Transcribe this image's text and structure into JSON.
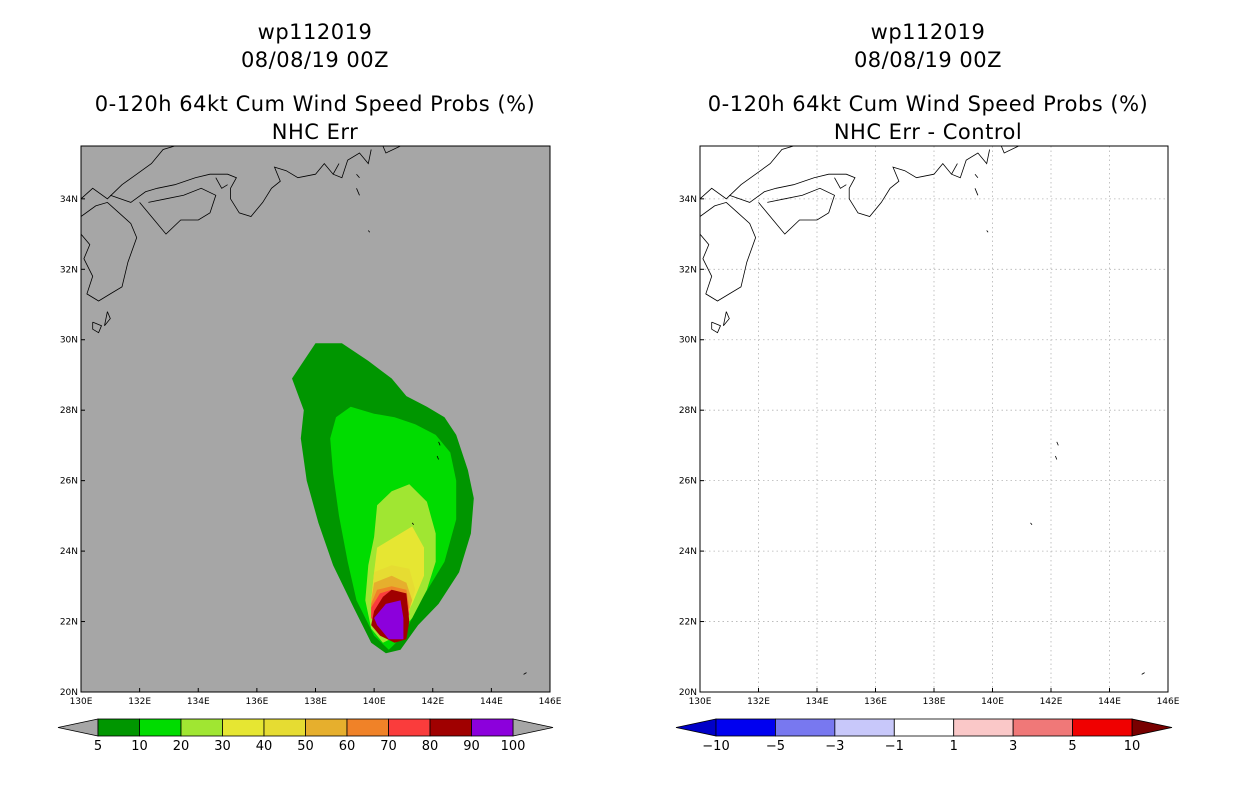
{
  "left_panel": {
    "title_line1": "wp112019",
    "title_line2": "08/08/19 00Z",
    "title_line3": "0-120h 64kt Cum Wind Speed Probs (%)",
    "title_line4": "NHC Err"
  },
  "right_panel": {
    "title_line1": "wp112019",
    "title_line2": "08/08/19 00Z",
    "title_line3": "0-120h 64kt Cum Wind Speed Probs (%)",
    "title_line4": "NHC Err - Control"
  },
  "chart_data": [
    {
      "type": "heatmap",
      "title": "0-120h 64kt Cum Wind Speed Probs (%) - NHC Err",
      "storm": "wp112019",
      "time": "08/08/19 00Z",
      "xlim": [
        130,
        146
      ],
      "ylim": [
        20,
        35.5
      ],
      "x_ticks": [
        "130E",
        "132E",
        "134E",
        "136E",
        "138E",
        "140E",
        "142E",
        "144E",
        "146E"
      ],
      "y_ticks": [
        "20N",
        "22N",
        "24N",
        "26N",
        "28N",
        "30N",
        "32N",
        "34N"
      ],
      "background": "#a6a6a6",
      "colorbar": {
        "labels": [
          "5",
          "10",
          "20",
          "30",
          "40",
          "50",
          "60",
          "70",
          "80",
          "90",
          "100"
        ],
        "colors": [
          "#009600",
          "#00dc00",
          "#a0e632",
          "#e6e632",
          "#e6dc32",
          "#e6af2d",
          "#f08228",
          "#fa3c3c",
          "#a00000",
          "#8c00dc"
        ],
        "extend": "both"
      },
      "contours": [
        {
          "min_pct": 5,
          "color": "#009600",
          "points": [
            [
              137.2,
              28.9
            ],
            [
              138.0,
              29.9
            ],
            [
              138.9,
              29.9
            ],
            [
              139.8,
              29.4
            ],
            [
              140.6,
              28.9
            ],
            [
              141.1,
              28.4
            ],
            [
              141.8,
              28.1
            ],
            [
              142.4,
              27.8
            ],
            [
              142.8,
              27.3
            ],
            [
              143.2,
              26.3
            ],
            [
              143.4,
              25.5
            ],
            [
              143.3,
              24.5
            ],
            [
              142.9,
              23.4
            ],
            [
              142.2,
              22.5
            ],
            [
              141.5,
              21.9
            ],
            [
              140.9,
              21.2
            ],
            [
              140.4,
              21.1
            ],
            [
              139.9,
              21.4
            ],
            [
              139.3,
              22.4
            ],
            [
              138.6,
              23.6
            ],
            [
              138.1,
              24.8
            ],
            [
              137.7,
              26.0
            ],
            [
              137.5,
              27.2
            ],
            [
              137.6,
              28.0
            ],
            [
              137.2,
              28.9
            ]
          ]
        },
        {
          "min_pct": 10,
          "color": "#00dc00",
          "points": [
            [
              138.7,
              27.8
            ],
            [
              139.2,
              28.1
            ],
            [
              140.0,
              27.9
            ],
            [
              140.7,
              27.8
            ],
            [
              141.4,
              27.6
            ],
            [
              142.1,
              27.3
            ],
            [
              142.6,
              26.8
            ],
            [
              142.8,
              26.0
            ],
            [
              142.8,
              24.9
            ],
            [
              142.4,
              23.7
            ],
            [
              141.6,
              22.6
            ],
            [
              141.0,
              21.6
            ],
            [
              140.5,
              21.2
            ],
            [
              140.0,
              21.6
            ],
            [
              139.4,
              22.6
            ],
            [
              139.1,
              23.7
            ],
            [
              138.8,
              25.0
            ],
            [
              138.6,
              26.2
            ],
            [
              138.5,
              27.2
            ],
            [
              138.7,
              27.8
            ]
          ]
        },
        {
          "min_pct": 20,
          "color": "#a0e632",
          "points": [
            [
              140.1,
              25.3
            ],
            [
              140.6,
              25.7
            ],
            [
              141.2,
              25.9
            ],
            [
              141.8,
              25.4
            ],
            [
              142.1,
              24.5
            ],
            [
              142.1,
              23.7
            ],
            [
              141.8,
              22.9
            ],
            [
              141.3,
              22.1
            ],
            [
              140.8,
              21.6
            ],
            [
              140.3,
              21.4
            ],
            [
              139.9,
              21.8
            ],
            [
              139.7,
              22.6
            ],
            [
              139.8,
              23.6
            ],
            [
              140.0,
              24.4
            ],
            [
              140.1,
              25.3
            ]
          ]
        },
        {
          "min_pct": 30,
          "color": "#e6e632",
          "points": [
            [
              140.1,
              24.1
            ],
            [
              140.7,
              24.4
            ],
            [
              141.3,
              24.7
            ],
            [
              141.7,
              24.1
            ],
            [
              141.7,
              23.3
            ],
            [
              141.3,
              22.5
            ],
            [
              140.9,
              21.9
            ],
            [
              140.4,
              21.6
            ],
            [
              140.0,
              21.9
            ],
            [
              139.9,
              22.6
            ],
            [
              140.0,
              23.4
            ],
            [
              140.1,
              24.1
            ]
          ]
        },
        {
          "min_pct": 40,
          "color": "#e6dc32",
          "points": [
            [
              140.0,
              23.4
            ],
            [
              140.6,
              23.6
            ],
            [
              141.2,
              23.5
            ],
            [
              141.4,
              22.9
            ],
            [
              141.2,
              22.3
            ],
            [
              140.8,
              21.8
            ],
            [
              140.3,
              21.7
            ],
            [
              140.0,
              22.0
            ],
            [
              139.9,
              22.6
            ],
            [
              140.0,
              23.4
            ]
          ]
        },
        {
          "min_pct": 50,
          "color": "#e6af2d",
          "points": [
            [
              140.0,
              23.1
            ],
            [
              140.6,
              23.3
            ],
            [
              141.1,
              23.1
            ],
            [
              141.3,
              22.6
            ],
            [
              141.1,
              22.1
            ],
            [
              140.7,
              21.8
            ],
            [
              140.2,
              21.8
            ],
            [
              139.9,
              22.1
            ],
            [
              139.9,
              22.6
            ],
            [
              140.0,
              23.1
            ]
          ]
        },
        {
          "min_pct": 60,
          "color": "#f08228",
          "points": [
            [
              140.1,
              22.9
            ],
            [
              140.6,
              23.0
            ],
            [
              141.1,
              22.9
            ],
            [
              141.2,
              22.4
            ],
            [
              141.0,
              22.0
            ],
            [
              140.6,
              21.8
            ],
            [
              140.2,
              21.8
            ],
            [
              139.9,
              22.1
            ],
            [
              139.9,
              22.5
            ],
            [
              140.1,
              22.9
            ]
          ]
        },
        {
          "min_pct": 70,
          "color": "#fa3c3c",
          "points": [
            [
              140.2,
              22.8
            ],
            [
              140.6,
              22.9
            ],
            [
              141.1,
              22.7
            ],
            [
              141.2,
              22.2
            ],
            [
              141.0,
              21.9
            ],
            [
              140.6,
              21.8
            ],
            [
              140.2,
              21.8
            ],
            [
              139.9,
              22.1
            ],
            [
              139.9,
              22.4
            ],
            [
              140.2,
              22.8
            ]
          ]
        },
        {
          "min_pct": 80,
          "color": "#a00000",
          "points": [
            [
              140.3,
              22.7
            ],
            [
              140.6,
              22.9
            ],
            [
              141.1,
              22.8
            ],
            [
              141.2,
              22.0
            ],
            [
              141.1,
              21.5
            ],
            [
              140.7,
              21.4
            ],
            [
              140.2,
              21.6
            ],
            [
              139.9,
              21.9
            ],
            [
              140.0,
              22.3
            ],
            [
              140.3,
              22.7
            ]
          ]
        },
        {
          "min_pct": 90,
          "color": "#8c00dc",
          "points": [
            [
              140.4,
              22.5
            ],
            [
              140.9,
              22.6
            ],
            [
              141.0,
              22.1
            ],
            [
              141.0,
              21.5
            ],
            [
              140.5,
              21.5
            ],
            [
              140.1,
              21.9
            ],
            [
              140.0,
              22.1
            ],
            [
              140.4,
              22.5
            ]
          ]
        }
      ]
    },
    {
      "type": "heatmap",
      "title": "0-120h 64kt Cum Wind Speed Probs (%) - NHC Err - Control",
      "storm": "wp112019",
      "time": "08/08/19 00Z",
      "xlim": [
        130,
        146
      ],
      "ylim": [
        20,
        35.5
      ],
      "x_ticks": [
        "130E",
        "132E",
        "134E",
        "136E",
        "138E",
        "140E",
        "142E",
        "144E",
        "146E"
      ],
      "y_ticks": [
        "20N",
        "22N",
        "24N",
        "26N",
        "28N",
        "30N",
        "32N",
        "34N"
      ],
      "grid": true,
      "background": "#ffffff",
      "colorbar": {
        "labels": [
          "-10",
          "-5",
          "-3",
          "-1",
          "1",
          "3",
          "5",
          "10"
        ],
        "colors": [
          "#0000c8",
          "#0000f0",
          "#7878f0",
          "#c8c8fa",
          "#ffffff",
          "#fac8c8",
          "#f07878",
          "#f00000",
          "#780000"
        ],
        "extend": "both"
      },
      "contours": []
    }
  ]
}
